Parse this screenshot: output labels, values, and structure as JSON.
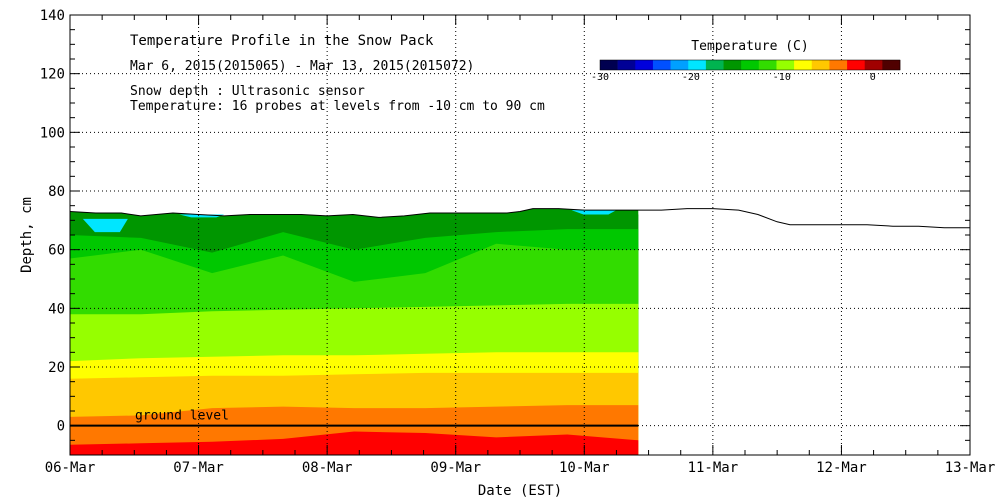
{
  "chart_data": {
    "type": "heatmap",
    "title": "Temperature Profile in the Snow Pack",
    "subtitle": "Mar  6, 2015(2015065) - Mar 13, 2015(2015072)",
    "notes": [
      "Snow depth : Ultrasonic sensor",
      "Temperature: 16 probes at levels from -10 cm to 90 cm"
    ],
    "xlabel": "Date (EST)",
    "ylabel": "Depth, cm",
    "x_ticks": [
      "06-Mar",
      "07-Mar",
      "08-Mar",
      "09-Mar",
      "10-Mar",
      "11-Mar",
      "12-Mar",
      "13-Mar"
    ],
    "x_range_days": [
      0,
      7
    ],
    "ylim": [
      -10,
      140
    ],
    "y_ticks": [
      0,
      20,
      40,
      60,
      80,
      100,
      120,
      140
    ],
    "grid": true,
    "ground_label": "ground level",
    "ground_level_cm": 0,
    "colorbar": {
      "title": "Temperature (C)",
      "placement": "top-right",
      "min": -30,
      "max": 3,
      "tick_labels": [
        "-30",
        "-20",
        "-10",
        "0"
      ],
      "tick_values": [
        -30,
        -20,
        -10,
        0
      ],
      "colors": [
        "#000050",
        "#000096",
        "#0000dc",
        "#0050ff",
        "#00a0ff",
        "#00e6ff",
        "#00b450",
        "#009600",
        "#00c800",
        "#32dc00",
        "#96ff00",
        "#ffff00",
        "#ffc800",
        "#ff7800",
        "#ff0000",
        "#a00000",
        "#500000"
      ]
    },
    "temperature_end_day": 4.42,
    "temperature_bands": [
      {
        "name": "band-red",
        "color": "#ff0000",
        "level_cm": [
          -6.5,
          -6,
          -5.5,
          -4.5,
          -2,
          -2.5,
          -4,
          -3,
          -5
        ]
      },
      {
        "name": "band-orange",
        "color": "#ff7800",
        "level_cm": [
          3,
          3.5,
          6,
          6.5,
          6,
          6,
          6.5,
          7,
          7
        ]
      },
      {
        "name": "band-amber",
        "color": "#ffc800",
        "level_cm": [
          16,
          16.5,
          17,
          17,
          17.5,
          18,
          18,
          18,
          18
        ]
      },
      {
        "name": "band-yellow",
        "color": "#ffff00",
        "level_cm": [
          22,
          23,
          23.5,
          24,
          24,
          24.5,
          25,
          25,
          25
        ]
      },
      {
        "name": "band-lime",
        "color": "#96ff00",
        "level_cm": [
          38,
          38,
          39,
          39.5,
          40,
          40.5,
          41,
          41.5,
          41.5
        ]
      },
      {
        "name": "band-green",
        "color": "#32dc00",
        "level_cm": [
          57,
          60,
          52,
          58,
          49,
          52,
          62,
          60,
          60
        ]
      },
      {
        "name": "band-mid-green",
        "color": "#00c800",
        "level_cm": [
          65,
          64,
          59,
          66,
          60,
          64,
          66,
          67,
          67
        ]
      },
      {
        "name": "band-dark-green",
        "color": "#009600",
        "level_cm": [
          71,
          71,
          70,
          71,
          70,
          71,
          72,
          72,
          72
        ]
      }
    ],
    "cold_patches": [
      {
        "name": "cold-patch-1",
        "color": "#00e6ff",
        "start_day": 0.1,
        "end_day": 0.45,
        "top_cm": 70.5,
        "bottom_cm": 66
      },
      {
        "name": "cold-patch-2",
        "color": "#00e6ff",
        "start_day": 0.85,
        "end_day": 1.2,
        "top_cm": 72,
        "bottom_cm": 71
      },
      {
        "name": "cold-patch-3",
        "color": "#00e6ff",
        "start_day": 3.9,
        "end_day": 4.25,
        "top_cm": 73.5,
        "bottom_cm": 72
      }
    ],
    "snow_depth": {
      "x_days": [
        0,
        0.2,
        0.4,
        0.55,
        0.8,
        1.0,
        1.2,
        1.4,
        1.6,
        1.8,
        2.0,
        2.2,
        2.4,
        2.6,
        2.8,
        3.0,
        3.2,
        3.4,
        3.5,
        3.6,
        3.8,
        4.0,
        4.2,
        4.4,
        4.6,
        4.8,
        5.0,
        5.2,
        5.35,
        5.5,
        5.6,
        5.8,
        6.0,
        6.2,
        6.4,
        6.6,
        6.8,
        7.0
      ],
      "depth_cm": [
        73,
        72.5,
        72.5,
        71.5,
        72.5,
        72,
        71.5,
        72,
        72,
        72,
        71.5,
        72,
        71,
        71.5,
        72.5,
        72.5,
        72.5,
        72.5,
        73,
        74,
        74,
        73.5,
        73.5,
        73.5,
        73.5,
        74,
        74,
        73.5,
        72,
        69.5,
        68.5,
        68.5,
        68.5,
        68.5,
        68,
        68,
        67.5,
        67.5
      ]
    }
  }
}
